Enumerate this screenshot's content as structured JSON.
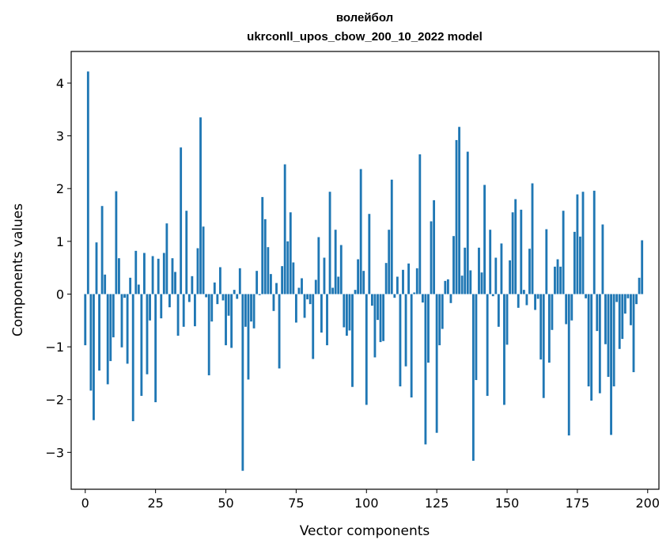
{
  "chart_data": {
    "type": "bar",
    "title_line1": "волейбол",
    "title_line2": "ukrconll_upos_cbow_200_10_2022 model",
    "xlabel": "Vector components",
    "ylabel": "Components values",
    "xlim": [
      -5,
      204
    ],
    "ylim": [
      -3.7,
      4.6
    ],
    "xticks": [
      0,
      25,
      50,
      75,
      100,
      125,
      150,
      175,
      200
    ],
    "yticks": [
      -3,
      -2,
      -1,
      0,
      1,
      2,
      3,
      4
    ],
    "bar_color": "#1f77b4",
    "grid": false,
    "values": [
      -0.97,
      4.22,
      -1.83,
      -2.39,
      0.98,
      -1.45,
      1.67,
      0.37,
      -1.71,
      -1.27,
      -0.82,
      1.95,
      0.68,
      -1.01,
      -0.07,
      -1.32,
      0.31,
      -2.41,
      0.82,
      0.18,
      -1.93,
      0.78,
      -1.52,
      -0.5,
      0.72,
      -2.05,
      0.67,
      -0.46,
      0.78,
      1.34,
      -0.25,
      0.68,
      0.42,
      -0.79,
      2.78,
      -0.62,
      1.58,
      -0.15,
      0.34,
      -0.61,
      0.87,
      3.35,
      1.28,
      -0.06,
      -1.54,
      -0.52,
      0.22,
      -0.19,
      0.51,
      -0.12,
      -0.97,
      -0.41,
      -1.02,
      0.08,
      -0.09,
      0.49,
      -3.35,
      -0.62,
      -1.62,
      -0.52,
      -0.65,
      0.44,
      -0.02,
      1.84,
      1.42,
      0.89,
      0.38,
      -0.32,
      0.21,
      -1.41,
      0.53,
      2.46,
      1.0,
      1.55,
      0.6,
      -0.54,
      0.12,
      0.3,
      -0.45,
      -0.1,
      -0.19,
      -1.23,
      0.27,
      1.08,
      -0.73,
      0.69,
      -0.97,
      1.94,
      0.12,
      1.22,
      0.33,
      0.93,
      -0.63,
      -0.79,
      -0.69,
      -1.76,
      0.08,
      0.66,
      2.37,
      0.44,
      -2.1,
      1.52,
      -0.22,
      -1.2,
      -0.49,
      -0.91,
      -0.89,
      0.59,
      1.22,
      2.17,
      -0.07,
      0.33,
      -1.75,
      0.46,
      -1.37,
      0.58,
      -1.96,
      0.03,
      0.49,
      2.65,
      -0.16,
      -2.85,
      -1.3,
      1.38,
      1.78,
      -2.63,
      -0.97,
      -0.66,
      0.25,
      0.28,
      -0.17,
      1.1,
      2.92,
      3.17,
      0.35,
      0.88,
      2.7,
      0.45,
      -3.16,
      -1.63,
      0.88,
      0.41,
      2.07,
      -1.93,
      1.22,
      -0.04,
      0.69,
      -0.62,
      0.96,
      -2.1,
      -0.96,
      0.64,
      1.55,
      1.8,
      -0.26,
      1.6,
      0.08,
      -0.21,
      0.86,
      2.1,
      -0.3,
      -0.09,
      -1.24,
      -1.97,
      1.23,
      -1.3,
      -0.68,
      0.52,
      0.66,
      0.52,
      1.58,
      -0.57,
      -2.68,
      -0.5,
      1.18,
      1.89,
      1.09,
      1.94,
      -0.08,
      -1.75,
      -2.02,
      1.96,
      -0.7,
      -1.88,
      1.32,
      -0.95,
      -1.57,
      -2.67,
      -1.75,
      -0.15,
      -1.04,
      -0.85,
      -0.37,
      -0.08,
      -0.59,
      -1.48,
      -0.19,
      0.31,
      1.02
    ]
  }
}
